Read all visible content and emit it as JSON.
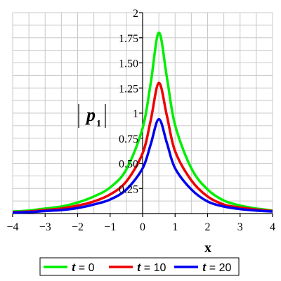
{
  "chart_data": {
    "type": "line",
    "xlabel": "x",
    "ylabel": {
      "symbol": "p",
      "subscript": "1"
    },
    "xlim": [
      -4,
      4
    ],
    "ylim": [
      0,
      2
    ],
    "grid": true,
    "legend_position": "bottom",
    "x_ticks": [
      "−4",
      "−3",
      "−2",
      "−1",
      "0",
      "1",
      "2",
      "3",
      "4"
    ],
    "y_ticks": [
      "0.25",
      "0.50",
      "0.75",
      "1",
      "1.25",
      "1.50",
      "1.75",
      "2"
    ],
    "x": [
      -4,
      -3.5,
      -3,
      -2.5,
      -2,
      -1.5,
      -1,
      -0.5,
      0,
      0.25,
      0.5,
      0.75,
      1,
      1.5,
      2,
      2.5,
      3,
      3.5,
      4
    ],
    "series": [
      {
        "name": "t = 0",
        "color": "#00ee00",
        "values": [
          0.02,
          0.03,
          0.05,
          0.07,
          0.11,
          0.17,
          0.26,
          0.44,
          0.85,
          1.3,
          1.8,
          1.35,
          0.88,
          0.45,
          0.24,
          0.13,
          0.08,
          0.05,
          0.03
        ]
      },
      {
        "name": "t = 10",
        "color": "#ee0000",
        "values": [
          0.015,
          0.02,
          0.035,
          0.05,
          0.08,
          0.12,
          0.19,
          0.32,
          0.6,
          0.93,
          1.3,
          0.97,
          0.62,
          0.33,
          0.17,
          0.09,
          0.06,
          0.04,
          0.025
        ]
      },
      {
        "name": "t = 20",
        "color": "#0000ee",
        "values": [
          0.01,
          0.015,
          0.025,
          0.035,
          0.055,
          0.09,
          0.14,
          0.24,
          0.45,
          0.69,
          0.94,
          0.7,
          0.45,
          0.24,
          0.12,
          0.07,
          0.045,
          0.03,
          0.02
        ]
      }
    ],
    "legend": [
      {
        "var": "t",
        "rest": " = 0"
      },
      {
        "var": "t",
        "rest": " = 10"
      },
      {
        "var": "t",
        "rest": " = 20"
      }
    ]
  }
}
